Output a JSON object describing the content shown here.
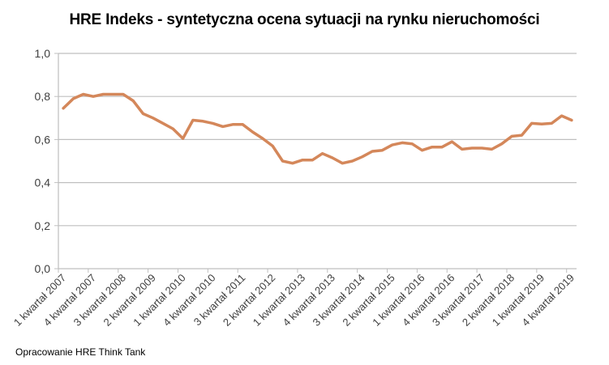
{
  "chart_data": {
    "type": "line",
    "title": "HRE Indeks - syntetyczna ocena sytuacji na rynku nieruchomości",
    "xlabel": "",
    "ylabel": "",
    "ylim": [
      0,
      1.0
    ],
    "yticks": [
      "0,0",
      "0,2",
      "0,4",
      "0,6",
      "0,8",
      "1,0"
    ],
    "grid": true,
    "legend": "none",
    "x_tick_labels": [
      "1 kwartał 2007",
      "4 kwartał 2007",
      "3 kwartał 2008",
      "2 kwartał 2009",
      "1 kwartał 2010",
      "4 kwartał 2010",
      "3 kwartał 2011",
      "2 kwartał 2012",
      "1 kwartał 2013",
      "4 kwartał 2013",
      "3 kwartał 2014",
      "2 kwartał 2015",
      "1 kwartał 2016",
      "4 kwartał 2016",
      "3 kwartał 2017",
      "2 kwartał 2018",
      "1 kwartał 2019",
      "4 kwartał 2019"
    ],
    "series": [
      {
        "name": "HRE Indeks",
        "color": "#D4875A",
        "x_start": "1 kwartał 2007",
        "x_end": "4 kwartał 2019",
        "values": [
          0.745,
          0.79,
          0.81,
          0.8,
          0.81,
          0.81,
          0.81,
          0.78,
          0.72,
          0.7,
          0.675,
          0.65,
          0.605,
          0.69,
          0.685,
          0.675,
          0.66,
          0.67,
          0.67,
          0.635,
          0.605,
          0.57,
          0.5,
          0.49,
          0.505,
          0.505,
          0.535,
          0.515,
          0.49,
          0.5,
          0.52,
          0.545,
          0.55,
          0.575,
          0.585,
          0.58,
          0.55,
          0.565,
          0.565,
          0.59,
          0.555,
          0.56,
          0.56,
          0.555,
          0.58,
          0.615,
          0.62,
          0.675,
          0.672,
          0.675,
          0.71,
          0.69
        ]
      }
    ]
  },
  "footer": "Opracowanie HRE Think Tank"
}
